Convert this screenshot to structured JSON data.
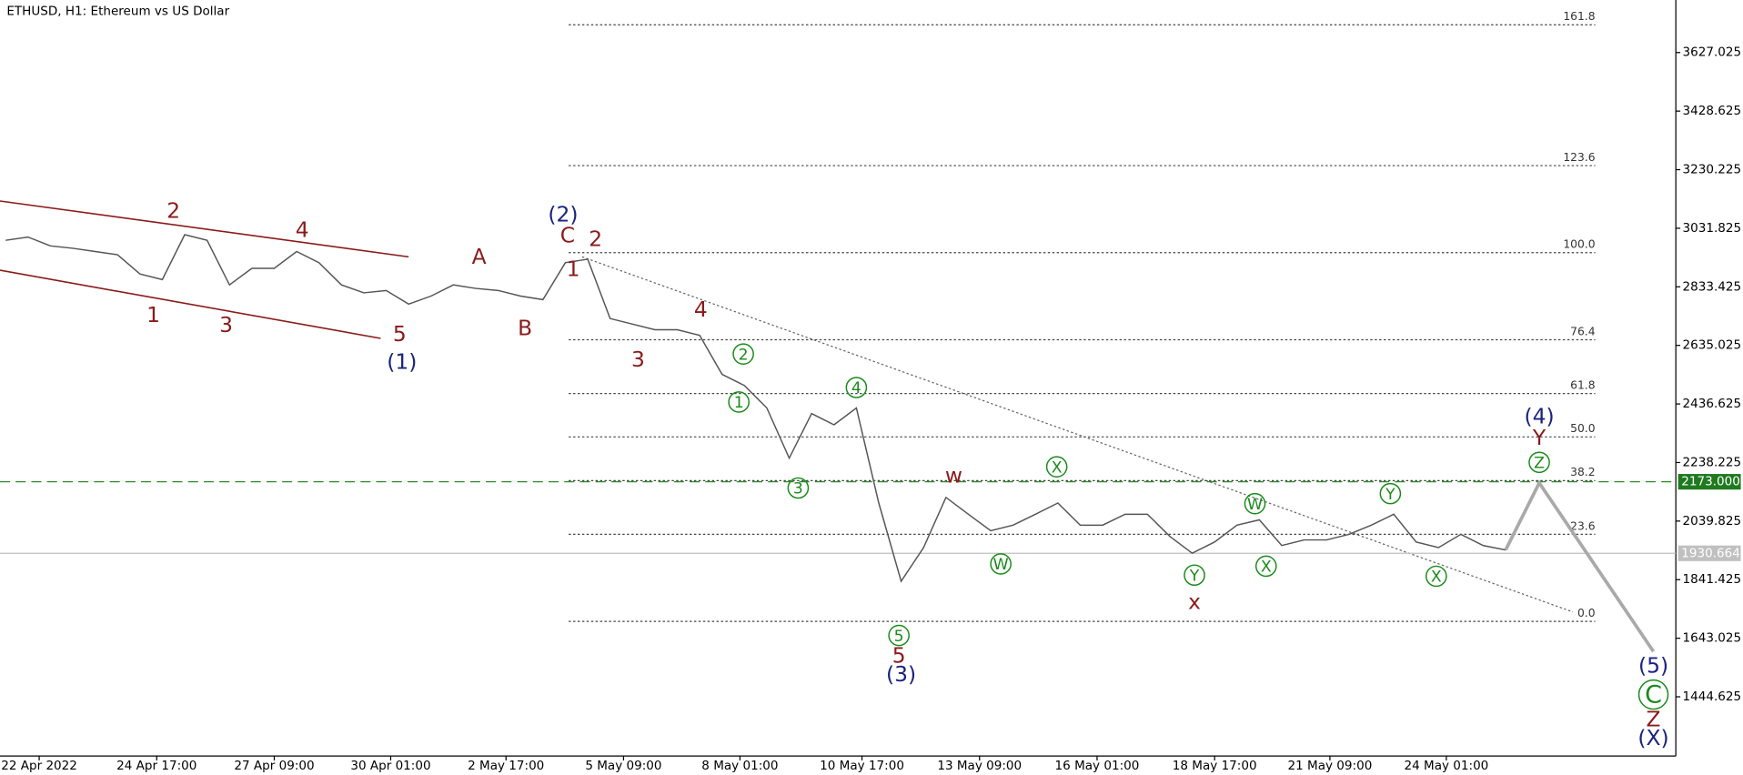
{
  "chart_data": {
    "type": "line",
    "title": "ETHUSD, H1:  Ethereum vs US Dollar",
    "color": "#555555",
    "values": [
      2991,
      3002,
      2972,
      2964,
      2953,
      2942,
      2877,
      2858,
      3010,
      2991,
      2840,
      2896,
      2896,
      2953,
      2915,
      2840,
      2813,
      2821,
      2775,
      2802,
      2840,
      2828,
      2821,
      2802,
      2790,
      2915,
      2927,
      2726,
      2707,
      2688,
      2688,
      2669,
      2537,
      2499,
      2423,
      2253,
      2404,
      2366,
      2423,
      2101,
      1836,
      1950,
      2120,
      2063,
      2007,
      2026,
      2063,
      2101,
      2026,
      2026,
      2063,
      2063,
      1988,
      1931,
      1969,
      2026,
      2044,
      1957,
      1976,
      1976,
      1995,
      2026,
      2063,
      1969,
      1950,
      1995,
      1957,
      1942
    ],
    "xlim": [
      -0.25,
      74.6
    ],
    "xticks": [
      {
        "value": 1.5,
        "label": "22 Apr 2022"
      },
      {
        "value": 6.75,
        "label": "24 Apr 17:00"
      },
      {
        "value": 12,
        "label": "27 Apr 09:00"
      },
      {
        "value": 17.2,
        "label": "30 Apr 01:00"
      },
      {
        "value": 22.35,
        "label": "2 May 17:00"
      },
      {
        "value": 27.6,
        "label": "5 May 09:00"
      },
      {
        "value": 32.8,
        "label": "8 May 01:00"
      },
      {
        "value": 38.25,
        "label": "10 May 17:00"
      },
      {
        "value": 43.5,
        "label": "13 May 09:00"
      },
      {
        "value": 48.75,
        "label": "16 May 01:00"
      },
      {
        "value": 54,
        "label": "18 May 17:00"
      },
      {
        "value": 59.15,
        "label": "21 May 09:00"
      },
      {
        "value": 64.35,
        "label": "24 May 01:00"
      }
    ],
    "ylim": [
      1244,
      3805
    ],
    "yticks": [
      3627.025,
      3428.625,
      3230.225,
      3031.825,
      2833.425,
      2635.025,
      2436.625,
      2238.225,
      2039.825,
      1841.425,
      1643.025,
      1444.625
    ],
    "fib_levels": [
      {
        "value": 3721,
        "label": "161.8"
      },
      {
        "value": 3244,
        "label": "123.6"
      },
      {
        "value": 2949,
        "label": "100.0"
      },
      {
        "value": 2654,
        "label": "76.4"
      },
      {
        "value": 2472,
        "label": "61.8"
      },
      {
        "value": 2325,
        "label": "50.0"
      },
      {
        "value": 2177,
        "label": "38.2"
      },
      {
        "value": 1995,
        "label": "23.6"
      },
      {
        "value": 1700,
        "label": "0.0"
      }
    ],
    "target_level": {
      "value": 2173,
      "label": "2173.000"
    },
    "current_price": 1930.664,
    "projection": {
      "x": [
        67,
        68.5,
        73.6
      ],
      "values": [
        1942,
        2169,
        1598
      ]
    },
    "wave_labels": [
      {
        "text": "2",
        "style": "red"
      },
      {
        "text": "4",
        "style": "red"
      },
      {
        "text": "1",
        "style": "red"
      },
      {
        "text": "3",
        "style": "red"
      },
      {
        "text": "5",
        "style": "red"
      },
      {
        "text": "A",
        "style": "red"
      },
      {
        "text": "B",
        "style": "red"
      },
      {
        "text": "C",
        "style": "red"
      },
      {
        "text": "1",
        "style": "red"
      },
      {
        "text": "2",
        "style": "red"
      },
      {
        "text": "3",
        "style": "red"
      },
      {
        "text": "4",
        "style": "red"
      },
      {
        "text": "w",
        "style": "red"
      },
      {
        "text": "x",
        "style": "red"
      },
      {
        "text": "5",
        "style": "red"
      },
      {
        "text": "Y",
        "style": "red"
      },
      {
        "text": "Z",
        "style": "red"
      },
      {
        "text": "(1)",
        "style": "navy"
      },
      {
        "text": "(2)",
        "style": "navy"
      },
      {
        "text": "(3)",
        "style": "navy"
      },
      {
        "text": "(4)",
        "style": "navy"
      },
      {
        "text": "(5)",
        "style": "navy"
      },
      {
        "text": "(X)",
        "style": "navy"
      },
      {
        "text": "2",
        "style": "green"
      },
      {
        "text": "1",
        "style": "green"
      },
      {
        "text": "4",
        "style": "green"
      },
      {
        "text": "3",
        "style": "green"
      },
      {
        "text": "5",
        "style": "green"
      },
      {
        "text": "X",
        "style": "green"
      },
      {
        "text": "W",
        "style": "green"
      },
      {
        "text": "W",
        "style": "green"
      },
      {
        "text": "Y",
        "style": "green"
      },
      {
        "text": "X",
        "style": "green"
      },
      {
        "text": "Y",
        "style": "green"
      },
      {
        "text": "X",
        "style": "green"
      },
      {
        "text": "Z",
        "style": "green"
      },
      {
        "text": "C",
        "style": "green"
      }
    ]
  }
}
